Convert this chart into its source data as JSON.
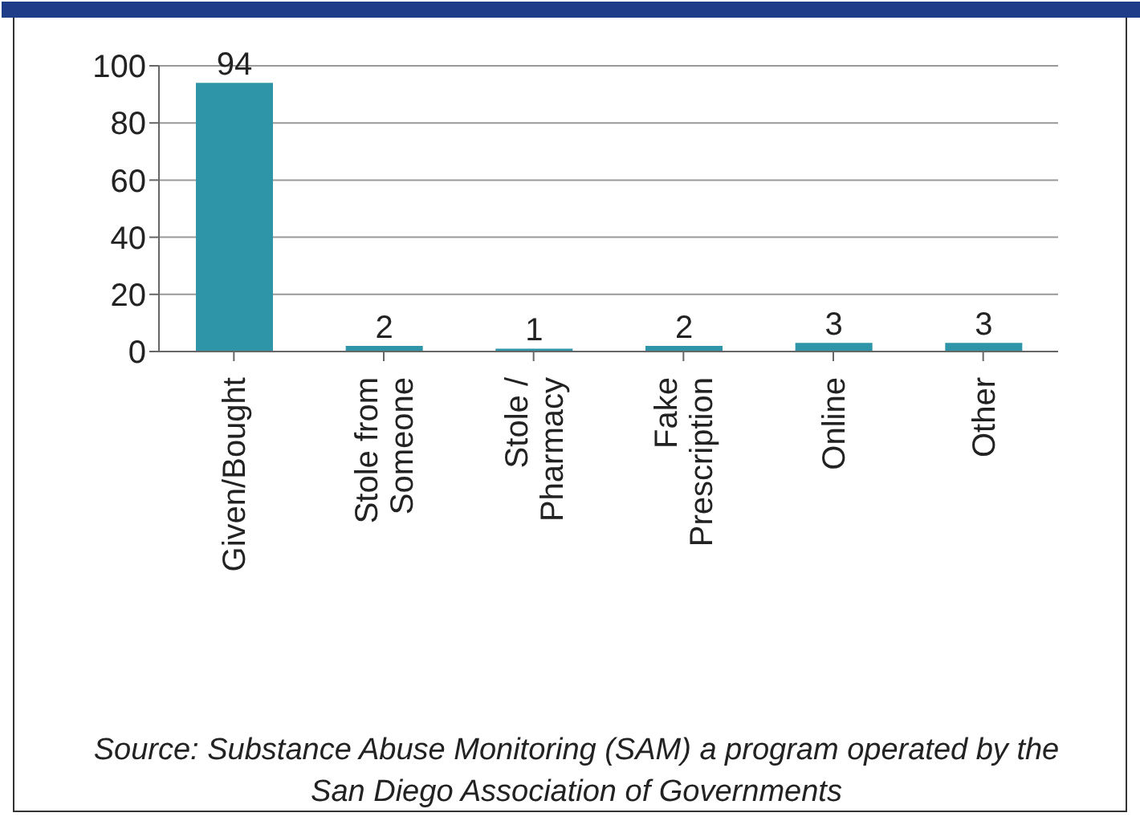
{
  "chart_data": {
    "type": "bar",
    "categories": [
      "Given/Bought",
      "Stole from Someone",
      "Stole / Pharmacy",
      "Fake Prescription",
      "Online",
      "Other"
    ],
    "values": [
      94,
      2,
      1,
      2,
      3,
      3
    ],
    "color": "#2e94a8",
    "ylim": [
      0,
      100
    ],
    "yticks": [
      0,
      20,
      40,
      60,
      80,
      100
    ],
    "grid": "y",
    "data_labels": true,
    "legend": false,
    "annotations": [
      "Source: Substance Abuse Monitoring (SAM) a program operated by the San Diego Association of Governments"
    ]
  }
}
